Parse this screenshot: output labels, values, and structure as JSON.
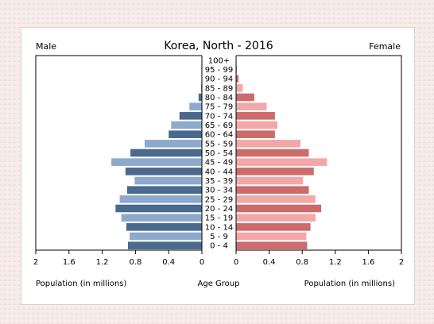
{
  "chart_data": {
    "type": "bar",
    "title": "Korea, North - 2016",
    "left_label": "Male",
    "right_label": "Female",
    "xlabel_left": "Population (in millions)",
    "xlabel_center": "Age Group",
    "xlabel_right": "Population (in millions)",
    "xlim": [
      0,
      2
    ],
    "ticks_left": [
      "2",
      "1.6",
      "1.2",
      "0.8",
      "0.4",
      "0"
    ],
    "ticks_right": [
      "0",
      "0.4",
      "0.8",
      "1.2",
      "1.6",
      "2"
    ],
    "categories": [
      "0 - 4",
      "5 - 9",
      "10 - 14",
      "15 - 19",
      "20 - 24",
      "25 - 29",
      "30 - 34",
      "35 - 39",
      "40 - 44",
      "45 - 49",
      "50 - 54",
      "55 - 59",
      "60 - 64",
      "65 - 69",
      "70 - 74",
      "75 - 79",
      "80 - 84",
      "85 - 89",
      "90 - 94",
      "95 - 99",
      "100+"
    ],
    "series": [
      {
        "name": "Male",
        "values": [
          0.89,
          0.87,
          0.91,
          0.97,
          1.04,
          0.99,
          0.9,
          0.81,
          0.92,
          1.09,
          0.86,
          0.69,
          0.4,
          0.37,
          0.27,
          0.15,
          0.04,
          0.01,
          0.005,
          0.0,
          0.0
        ],
        "colors": [
          "#49698d",
          "#8daacd"
        ]
      },
      {
        "name": "Female",
        "values": [
          0.86,
          0.85,
          0.9,
          0.96,
          1.03,
          0.96,
          0.88,
          0.81,
          0.94,
          1.1,
          0.88,
          0.78,
          0.47,
          0.5,
          0.47,
          0.37,
          0.22,
          0.08,
          0.03,
          0.01,
          0.0
        ],
        "colors": [
          "#cd6a6a",
          "#f2a8a8"
        ]
      }
    ]
  }
}
